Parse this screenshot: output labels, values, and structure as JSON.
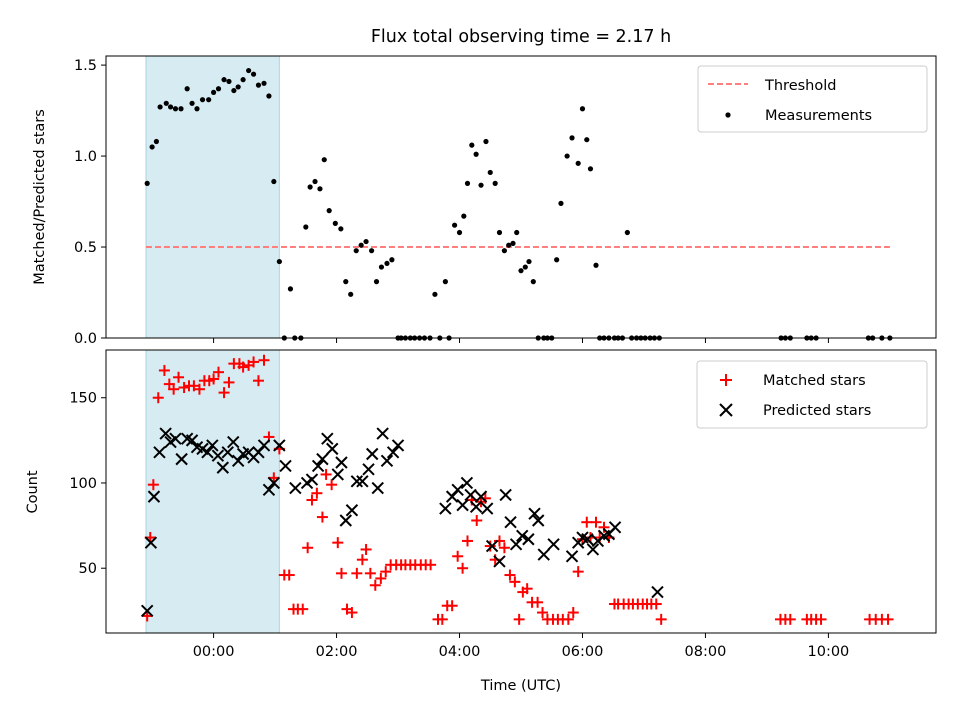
{
  "chart_data": [
    {
      "type": "scatter",
      "title": "Flux total observing time = 2.17 h",
      "ylabel": "Matched/Predicted stars",
      "xlim_hours": [
        -1.75,
        11.75
      ],
      "ylim": [
        0,
        1.55
      ],
      "yticks": [
        "0.0",
        "0.5",
        "1.0",
        "1.5"
      ],
      "shaded_span_hours": [
        -1.1,
        1.07
      ],
      "shade_color": "#add8e6",
      "legend_location": "upper right",
      "threshold": {
        "name": "Threshold",
        "value": 0.5,
        "x_range_hours": [
          -1.1,
          11.0
        ],
        "color": "#ff7f7f"
      },
      "series": [
        {
          "name": "Measurements",
          "color": "#000000",
          "x_hours": [
            -1.08,
            -1.0,
            -0.93,
            -0.87,
            -0.77,
            -0.7,
            -0.62,
            -0.53,
            -0.43,
            -0.35,
            -0.27,
            -0.18,
            -0.08,
            0.0,
            0.08,
            0.17,
            0.25,
            0.33,
            0.4,
            0.48,
            0.57,
            0.65,
            0.73,
            0.82,
            0.9,
            0.98,
            1.07,
            1.15,
            1.25,
            1.32,
            1.42,
            1.5,
            1.57,
            1.65,
            1.73,
            1.8,
            1.88,
            1.98,
            2.07,
            2.15,
            2.23,
            2.32,
            2.4,
            2.48,
            2.57,
            2.65,
            2.73,
            2.82,
            2.9,
            3.0,
            3.05,
            3.12,
            3.2,
            3.27,
            3.35,
            3.43,
            3.52,
            3.6,
            3.68,
            3.77,
            3.83,
            3.92,
            4.0,
            4.07,
            4.13,
            4.2,
            4.27,
            4.35,
            4.43,
            4.5,
            4.58,
            4.65,
            4.73,
            4.8,
            4.87,
            4.93,
            5.0,
            5.07,
            5.13,
            5.2,
            5.28,
            5.37,
            5.43,
            5.5,
            5.58,
            5.65,
            5.75,
            5.83,
            5.93,
            6.0,
            6.07,
            6.13,
            6.22,
            6.28,
            6.35,
            6.43,
            6.52,
            6.58,
            6.65,
            6.73,
            6.8,
            6.88,
            6.95,
            7.02,
            7.1,
            7.17,
            7.25,
            9.23,
            9.3,
            9.38,
            9.65,
            9.72,
            9.8,
            10.65,
            10.72,
            10.87,
            11.0
          ],
          "y": [
            0.85,
            1.05,
            1.08,
            1.27,
            1.29,
            1.27,
            1.26,
            1.26,
            1.37,
            1.29,
            1.26,
            1.31,
            1.31,
            1.35,
            1.37,
            1.42,
            1.41,
            1.36,
            1.38,
            1.42,
            1.47,
            1.45,
            1.39,
            1.4,
            1.33,
            0.86,
            0.42,
            0.0,
            0.27,
            0.0,
            0.0,
            0.61,
            0.83,
            0.86,
            0.82,
            0.98,
            0.7,
            0.63,
            0.6,
            0.31,
            0.24,
            0.48,
            0.51,
            0.53,
            0.48,
            0.31,
            0.39,
            0.41,
            0.43,
            0.0,
            0.0,
            0.0,
            0.0,
            0.0,
            0.0,
            0.0,
            0.0,
            0.24,
            0.0,
            0.31,
            0.0,
            0.62,
            0.58,
            0.67,
            0.85,
            1.06,
            1.01,
            0.84,
            1.08,
            0.91,
            0.85,
            0.58,
            0.48,
            0.51,
            0.52,
            0.58,
            0.37,
            0.39,
            0.42,
            0.31,
            0.0,
            0.0,
            0.0,
            0.0,
            0.43,
            0.74,
            1.0,
            1.1,
            0.96,
            1.26,
            1.09,
            0.93,
            0.4,
            0.0,
            0.0,
            0.0,
            0.0,
            0.0,
            0.0,
            0.58,
            0.0,
            0.0,
            0.0,
            0.0,
            0.0,
            0.0,
            0.0,
            0.0,
            0.0,
            0.0,
            0.0,
            0.0,
            0.0,
            0.0,
            0.0,
            0.0,
            0.0
          ]
        }
      ]
    },
    {
      "type": "scatter",
      "xlabel": "Time (UTC)",
      "ylabel": "Count",
      "xlim_hours": [
        -1.75,
        11.75
      ],
      "ylim": [
        12,
        178
      ],
      "yticks": [
        "50",
        "100",
        "150"
      ],
      "xticks": [
        "00:00",
        "02:00",
        "04:00",
        "06:00",
        "08:00",
        "10:00"
      ],
      "shaded_span_hours": [
        -1.1,
        1.07
      ],
      "legend_location": "upper right",
      "series": [
        {
          "name": "Matched stars",
          "marker": "plus",
          "color": "#ff0000",
          "x_hours": [
            -1.08,
            -1.03,
            -0.98,
            -0.9,
            -0.8,
            -0.72,
            -0.65,
            -0.57,
            -0.48,
            -0.4,
            -0.32,
            -0.23,
            -0.15,
            -0.07,
            0.0,
            0.08,
            0.17,
            0.25,
            0.33,
            0.42,
            0.48,
            0.57,
            0.65,
            0.73,
            0.82,
            0.9,
            0.98,
            1.07,
            1.15,
            1.23,
            1.3,
            1.37,
            1.45,
            1.53,
            1.6,
            1.68,
            1.77,
            1.83,
            1.92,
            2.02,
            2.08,
            2.17,
            2.25,
            2.33,
            2.42,
            2.48,
            2.55,
            2.63,
            2.72,
            2.8,
            2.88,
            2.97,
            3.05,
            3.12,
            3.2,
            3.28,
            3.37,
            3.45,
            3.53,
            3.65,
            3.72,
            3.8,
            3.88,
            3.97,
            4.05,
            4.13,
            4.2,
            4.28,
            4.35,
            4.42,
            4.5,
            4.58,
            4.65,
            4.73,
            4.82,
            4.9,
            4.97,
            5.03,
            5.1,
            5.18,
            5.27,
            5.35,
            5.43,
            5.52,
            5.6,
            5.68,
            5.77,
            5.85,
            5.93,
            6.0,
            6.07,
            6.13,
            6.22,
            6.28,
            6.35,
            6.43,
            6.52,
            6.58,
            6.67,
            6.75,
            6.82,
            6.9,
            6.98,
            7.05,
            7.12,
            7.2,
            7.28,
            9.22,
            9.3,
            9.38,
            9.65,
            9.72,
            9.8,
            9.88,
            10.67,
            10.77,
            10.87,
            10.97
          ],
          "y": [
            22,
            68,
            99,
            150,
            166,
            158,
            155,
            162,
            156,
            157,
            157,
            155,
            160,
            160,
            161,
            165,
            153,
            159,
            170,
            170,
            168,
            169,
            171,
            160,
            172,
            127,
            103,
            120,
            46,
            46,
            26,
            26,
            26,
            62,
            90,
            94,
            80,
            105,
            99,
            65,
            47,
            26,
            24,
            47,
            55,
            61,
            47,
            40,
            44,
            48,
            52,
            52,
            52,
            52,
            52,
            52,
            52,
            52,
            52,
            20,
            20,
            28,
            28,
            57,
            50,
            66,
            90,
            78,
            89,
            91,
            63,
            55,
            66,
            62,
            46,
            42,
            20,
            36,
            38,
            30,
            30,
            24,
            20,
            20,
            20,
            20,
            20,
            24,
            48,
            67,
            77,
            68,
            77,
            68,
            74,
            68,
            29,
            29,
            29,
            29,
            29,
            29,
            29,
            29,
            29,
            29,
            20,
            20,
            20,
            20,
            20,
            20,
            20,
            20,
            20,
            20,
            20,
            20
          ],
          "values_note": ""
        },
        {
          "name": "Predicted stars",
          "marker": "x",
          "color": "#000000",
          "x_hours": [
            -1.08,
            -1.02,
            -0.97,
            -0.88,
            -0.78,
            -0.7,
            -0.62,
            -0.52,
            -0.43,
            -0.35,
            -0.27,
            -0.18,
            -0.1,
            -0.02,
            0.07,
            0.15,
            0.23,
            0.32,
            0.4,
            0.48,
            0.57,
            0.65,
            0.73,
            0.82,
            0.9,
            0.98,
            1.07,
            1.17,
            1.33,
            1.52,
            1.6,
            1.7,
            1.77,
            1.85,
            1.93,
            2.02,
            2.08,
            2.15,
            2.25,
            2.33,
            2.42,
            2.52,
            2.58,
            2.67,
            2.75,
            2.82,
            2.92,
            3.0,
            3.77,
            3.88,
            3.97,
            4.05,
            4.12,
            4.18,
            4.27,
            4.35,
            4.45,
            4.53,
            4.65,
            4.75,
            4.83,
            4.92,
            5.02,
            5.12,
            5.22,
            5.28,
            5.37,
            5.53,
            5.83,
            5.93,
            6.0,
            6.08,
            6.17,
            6.25,
            6.35,
            6.43,
            6.53,
            7.22
          ],
          "y": [
            25,
            65,
            92,
            118,
            129,
            124,
            126,
            114,
            126,
            125,
            121,
            120,
            118,
            122,
            116,
            109,
            118,
            124,
            113,
            117,
            118,
            115,
            118,
            122,
            96,
            100,
            122,
            110,
            97,
            100,
            102,
            110,
            114,
            126,
            120,
            105,
            112,
            78,
            84,
            101,
            101,
            108,
            117,
            97,
            129,
            113,
            118,
            122,
            85,
            92,
            96,
            87,
            100,
            93,
            86,
            92,
            85,
            63,
            54,
            93,
            77,
            64,
            69,
            67,
            82,
            78,
            58,
            64,
            57,
            65,
            68,
            67,
            61,
            66,
            69,
            70,
            74,
            36
          ]
        }
      ]
    }
  ]
}
